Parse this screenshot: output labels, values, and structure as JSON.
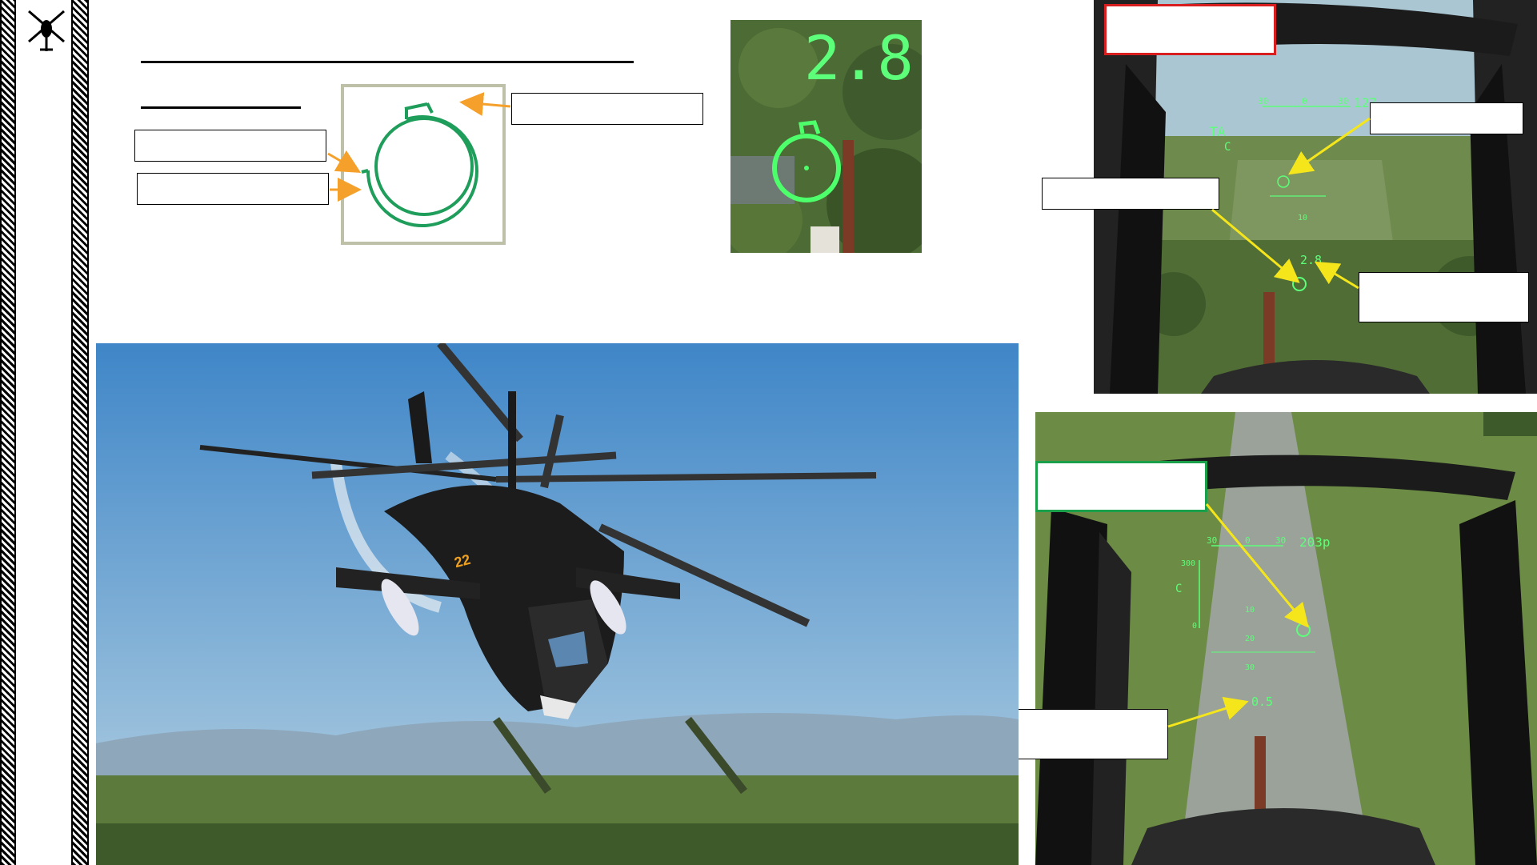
{
  "hud_closeup": {
    "range_readout": "2.8"
  },
  "hud_top": {
    "heading_readout": "127",
    "mode_label_1": "TA",
    "mode_label_2": "C",
    "range_readout": "2.8",
    "scale_left": "30",
    "scale_mid": "0",
    "scale_right": "30",
    "pitch_upper": "10",
    "pitch_lower": "10"
  },
  "hud_bottom": {
    "heading_readout": "203р",
    "mode_label": "C",
    "range_readout": "0.5",
    "scale_left": "30",
    "scale_mid": "0",
    "scale_right": "30",
    "alt_tick": "300",
    "alt_zero": "0",
    "pitch_1": "10",
    "pitch_2": "20",
    "pitch_3": "30"
  },
  "helicopter": {
    "tail_number": "22"
  },
  "colors": {
    "callout_arrow_orange": "#f5a02a",
    "callout_arrow_yellow": "#f5e61c",
    "reticle_green": "#1f9d5a",
    "hud_green": "#5dff7a",
    "warning_red": "#d81e1e",
    "accent_green": "#1aa04a"
  }
}
